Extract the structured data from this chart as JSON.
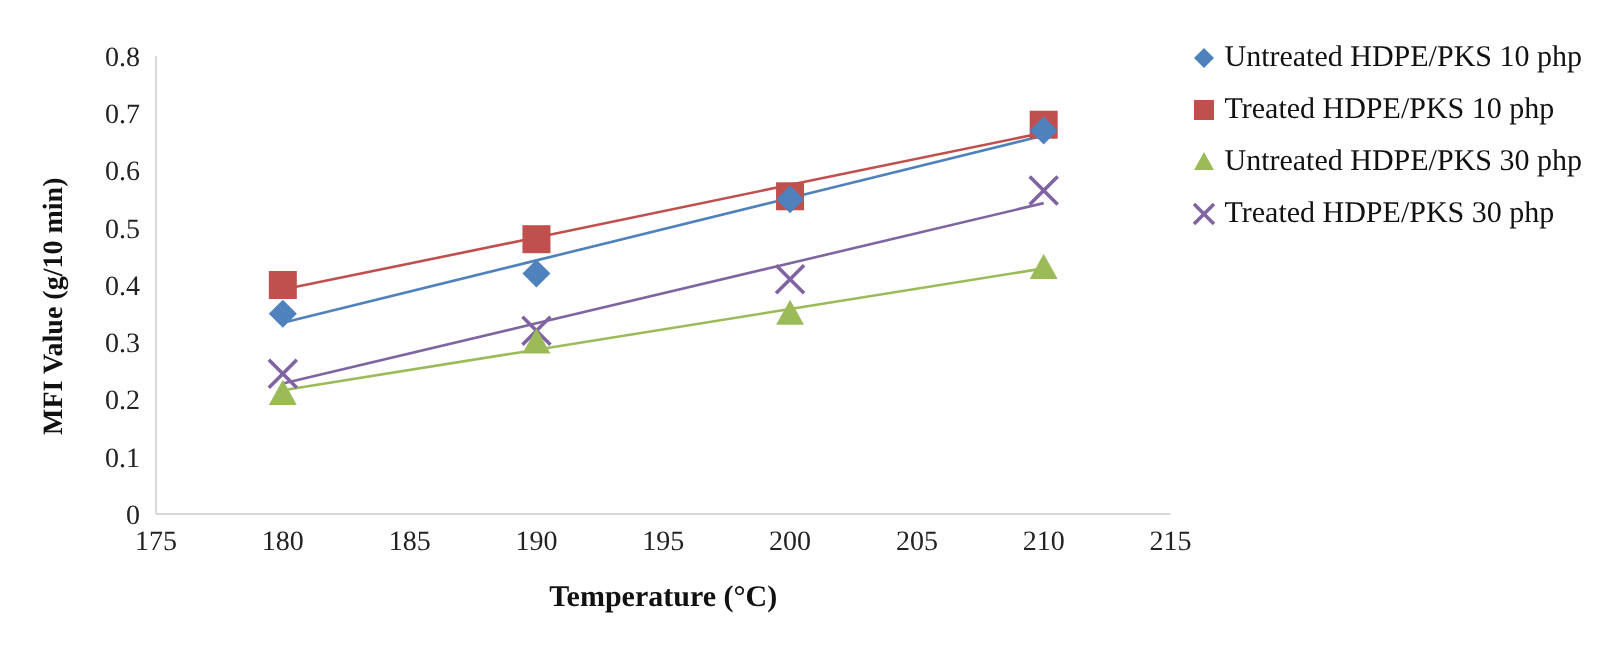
{
  "chart_data": {
    "type": "scatter",
    "xlabel": "Temperature (°C)",
    "ylabel": "MFI Value (g/10 min)",
    "x": [
      180,
      190,
      200,
      210
    ],
    "series": [
      {
        "name": "Untreated HDPE/PKS 10 php",
        "type": "scatter",
        "marker": "diamond",
        "color": "#4f81bd",
        "values": [
          0.35,
          0.42,
          0.55,
          0.67
        ]
      },
      {
        "name": "Treated HDPE/PKS 10 php",
        "type": "scatter",
        "marker": "square",
        "color": "#c0504d",
        "values": [
          0.4,
          0.48,
          0.555,
          0.68
        ]
      },
      {
        "name": "Untreated HDPE/PKS 30 php",
        "type": "scatter",
        "marker": "triangle",
        "color": "#9bbb59",
        "values": [
          0.21,
          0.3,
          0.35,
          0.43
        ]
      },
      {
        "name": "Treated HDPE/PKS 30 php",
        "type": "scatter",
        "marker": "cross",
        "color": "#8064a2",
        "values": [
          0.245,
          0.32,
          0.41,
          0.565
        ]
      },
      {
        "type": "line",
        "color": "#4f81bd",
        "values": [
          0.334,
          0.443,
          0.552,
          0.661
        ]
      },
      {
        "type": "line",
        "color": "#c0504d",
        "values": [
          0.392,
          0.483,
          0.575,
          0.666
        ]
      },
      {
        "type": "line",
        "color": "#9bbb59",
        "values": [
          0.216,
          0.287,
          0.358,
          0.429
        ]
      },
      {
        "type": "line",
        "color": "#8064a2",
        "values": [
          0.228,
          0.333,
          0.438,
          0.543
        ]
      }
    ],
    "xlim": [
      175,
      215
    ],
    "xticks": [
      175,
      180,
      185,
      190,
      195,
      200,
      205,
      210,
      215
    ],
    "ylim": [
      0,
      0.8
    ],
    "yticks": [
      0,
      0.1,
      0.2,
      0.3,
      0.4,
      0.5,
      0.6,
      0.7,
      0.8
    ],
    "grid": false,
    "legend": "right"
  }
}
